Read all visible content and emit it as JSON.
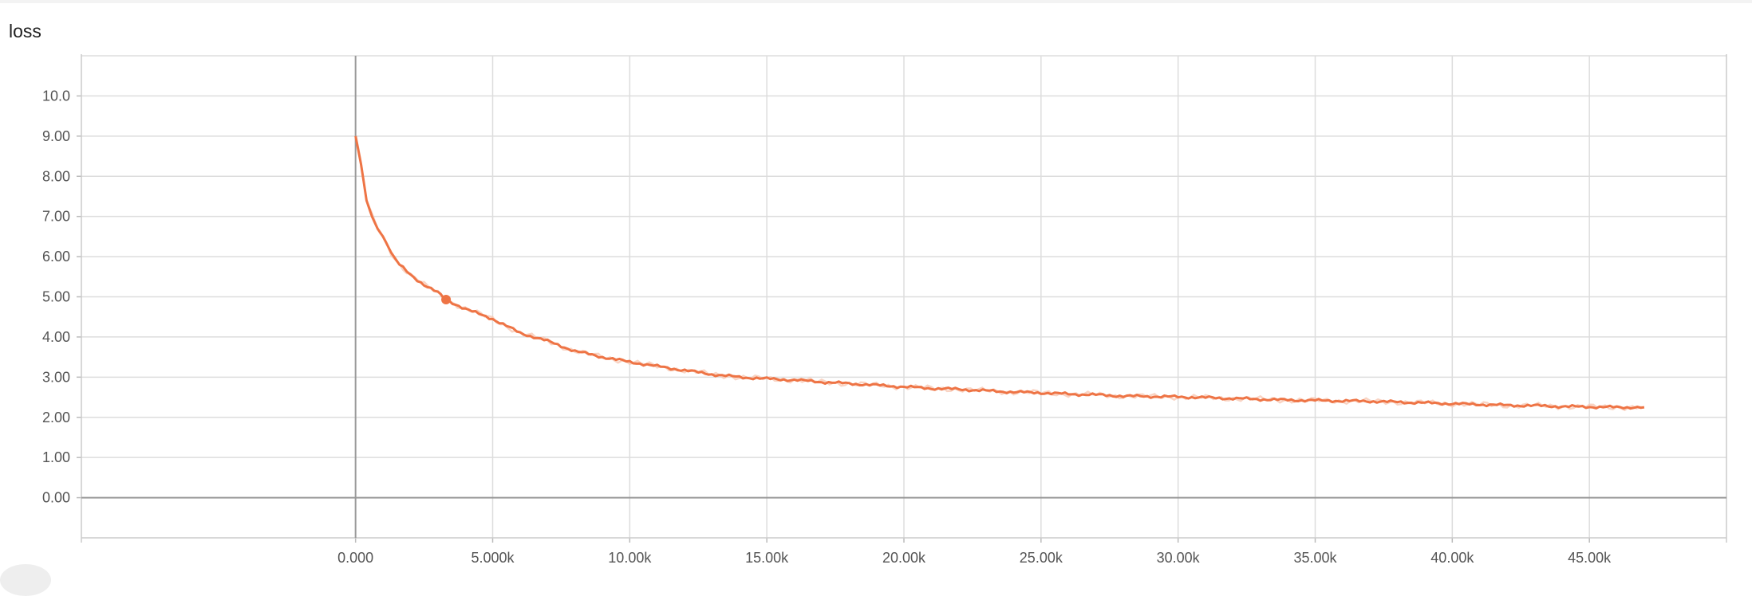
{
  "chart_data": {
    "type": "line",
    "title": "loss",
    "xlabel": "",
    "ylabel": "",
    "xlim": [
      -10000,
      50000
    ],
    "ylim": [
      -1,
      11
    ],
    "grid": true,
    "legend": "none",
    "x_ticks": [
      0,
      5000,
      10000,
      15000,
      20000,
      25000,
      30000,
      35000,
      40000,
      45000
    ],
    "x_tick_labels": [
      "0.000",
      "5.000k",
      "10.00k",
      "15.00k",
      "20.00k",
      "25.00k",
      "30.00k",
      "35.00k",
      "40.00k",
      "45.00k"
    ],
    "y_ticks": [
      0,
      1,
      2,
      3,
      4,
      5,
      6,
      7,
      8,
      9,
      10
    ],
    "y_tick_labels": [
      "0.00",
      "1.00",
      "2.00",
      "3.00",
      "4.00",
      "5.00",
      "6.00",
      "7.00",
      "8.00",
      "9.00",
      "10.0"
    ],
    "series": [
      {
        "color": "#ee7445",
        "raw_color": "#f7c9b5",
        "x": [
          0,
          200,
          400,
          600,
          800,
          1000,
          1300,
          1600,
          2000,
          2500,
          3000,
          3300,
          4000,
          5000,
          6000,
          7000,
          8000,
          9000,
          10000,
          11000,
          12000,
          13000,
          14000,
          15000,
          16000,
          17000,
          18000,
          19000,
          20000,
          21000,
          22000,
          23000,
          24000,
          25000,
          26000,
          27000,
          28000,
          29000,
          30000,
          31000,
          32000,
          33000,
          34000,
          35000,
          36000,
          37000,
          38000,
          39000,
          40000,
          41000,
          42000,
          43000,
          44000,
          45000,
          46000,
          47000
        ],
        "values": [
          9.0,
          8.3,
          7.4,
          7.0,
          6.7,
          6.5,
          6.1,
          5.8,
          5.55,
          5.3,
          5.1,
          4.93,
          4.7,
          4.45,
          4.1,
          3.9,
          3.65,
          3.5,
          3.38,
          3.27,
          3.17,
          3.07,
          3.0,
          2.96,
          2.93,
          2.88,
          2.84,
          2.8,
          2.76,
          2.72,
          2.7,
          2.66,
          2.63,
          2.61,
          2.58,
          2.56,
          2.53,
          2.52,
          2.51,
          2.49,
          2.47,
          2.45,
          2.43,
          2.42,
          2.41,
          2.4,
          2.38,
          2.36,
          2.34,
          2.32,
          2.3,
          2.29,
          2.27,
          2.26,
          2.25,
          2.25
        ]
      }
    ],
    "highlight_point": {
      "x": 3300,
      "y": 4.93
    }
  }
}
